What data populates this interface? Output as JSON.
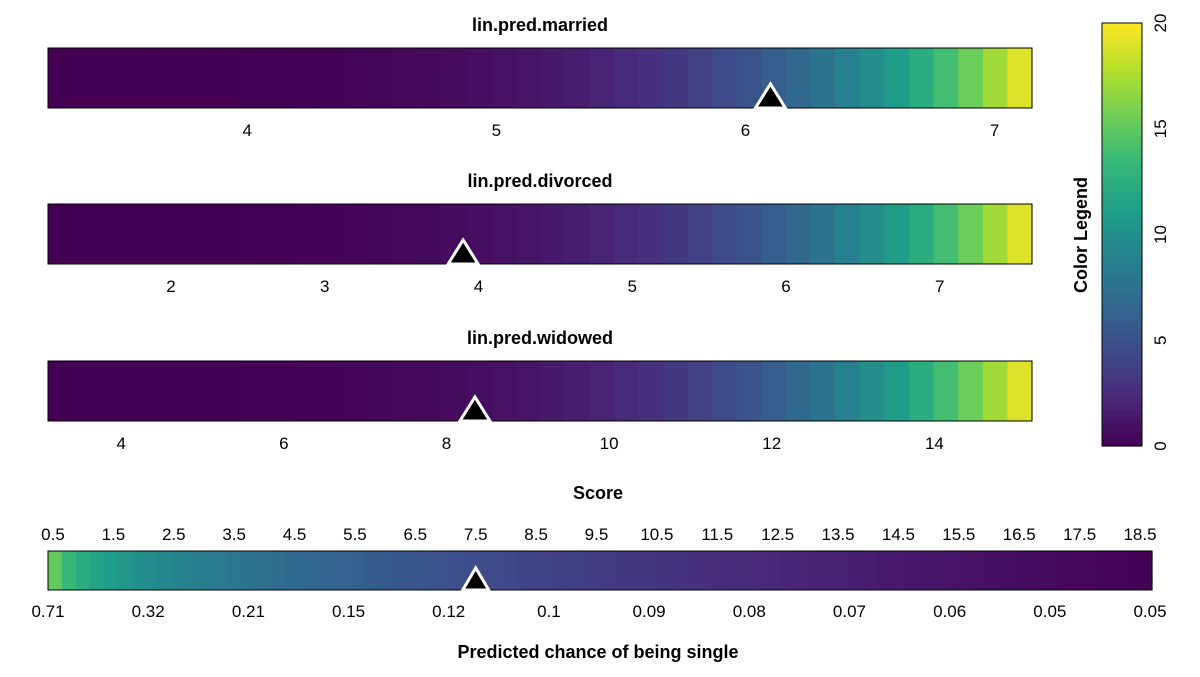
{
  "chart_data": {
    "type": "heatmap",
    "panels": [
      {
        "title": "lin.pred.married",
        "tick_values": [
          4,
          5,
          6,
          7
        ],
        "xlim": [
          3.2,
          7.15
        ],
        "marker_value": 6.1
      },
      {
        "title": "lin.pred.divorced",
        "tick_values": [
          2,
          3,
          4,
          5,
          6,
          7
        ],
        "xlim": [
          1.2,
          7.6
        ],
        "marker_value": 3.9
      },
      {
        "title": "lin.pred.widowed",
        "tick_values": [
          4,
          6,
          8,
          10,
          12,
          14
        ],
        "xlim": [
          3.1,
          15.2
        ],
        "marker_value": 8.35
      }
    ],
    "color_legend": {
      "title": "Color Legend",
      "tick_values": [
        0,
        5,
        10,
        15,
        20
      ],
      "range": [
        0,
        20
      ]
    },
    "score_bar": {
      "title": "Score",
      "score_ticks": [
        "0.5",
        "1.5",
        "2.5",
        "3.5",
        "4.5",
        "5.5",
        "6.5",
        "7.5",
        "8.5",
        "9.5",
        "10.5",
        "11.5",
        "12.5",
        "13.5",
        "14.5",
        "15.5",
        "16.5",
        "17.5",
        "18.5"
      ],
      "probability_ticks": [
        "0.71",
        "0.32",
        "0.21",
        "0.15",
        "0.12",
        "0.1",
        "0.09",
        "0.08",
        "0.07",
        "0.06",
        "0.05",
        "0.05"
      ],
      "xlabel": "Predicted chance of being single",
      "marker_score": 7.5
    }
  }
}
